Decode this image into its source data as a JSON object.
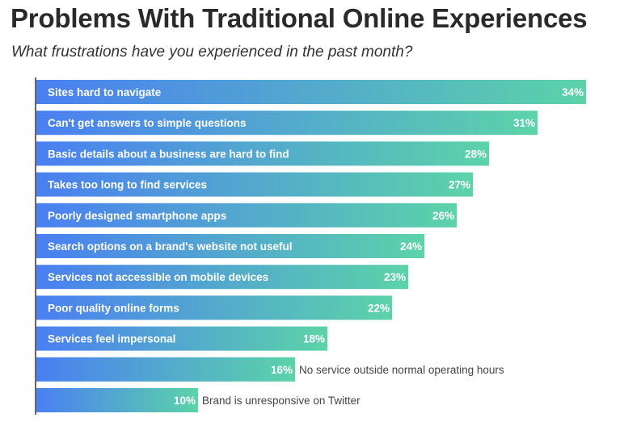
{
  "title": "Problems With Traditional Online Experiences",
  "subtitle": "What frustrations have you experienced in the past month?",
  "colors": {
    "gradient_start": "#4a7ff2",
    "gradient_end": "#5cd3a8",
    "axis": "#333333",
    "inside_text": "#ffffff",
    "outside_text": "#444444"
  },
  "chart_data": {
    "type": "bar",
    "orientation": "horizontal",
    "categories": [
      "Sites hard to navigate",
      "Can't get answers to simple questions",
      "Basic details about a business are hard to find",
      "Takes too long to find services",
      "Poorly designed smartphone apps",
      "Search options on a brand's website not useful",
      "Services not accessible on mobile devices",
      "Poor quality online forms",
      "Services feel impersonal",
      "No service outside normal operating hours",
      "Brand is unresponsive on Twitter"
    ],
    "values": [
      34,
      31,
      28,
      27,
      26,
      24,
      23,
      22,
      18,
      16,
      10
    ],
    "value_labels": [
      "34%",
      "31%",
      "28%",
      "27%",
      "26%",
      "24%",
      "23%",
      "22%",
      "18%",
      "16%",
      "10%"
    ],
    "label_position": [
      "inside",
      "inside",
      "inside",
      "inside",
      "inside",
      "inside",
      "inside",
      "inside",
      "inside",
      "outside",
      "outside"
    ],
    "xlabel": "",
    "ylabel": "",
    "xlim": [
      0,
      34
    ],
    "grid": false,
    "legend": "none"
  }
}
